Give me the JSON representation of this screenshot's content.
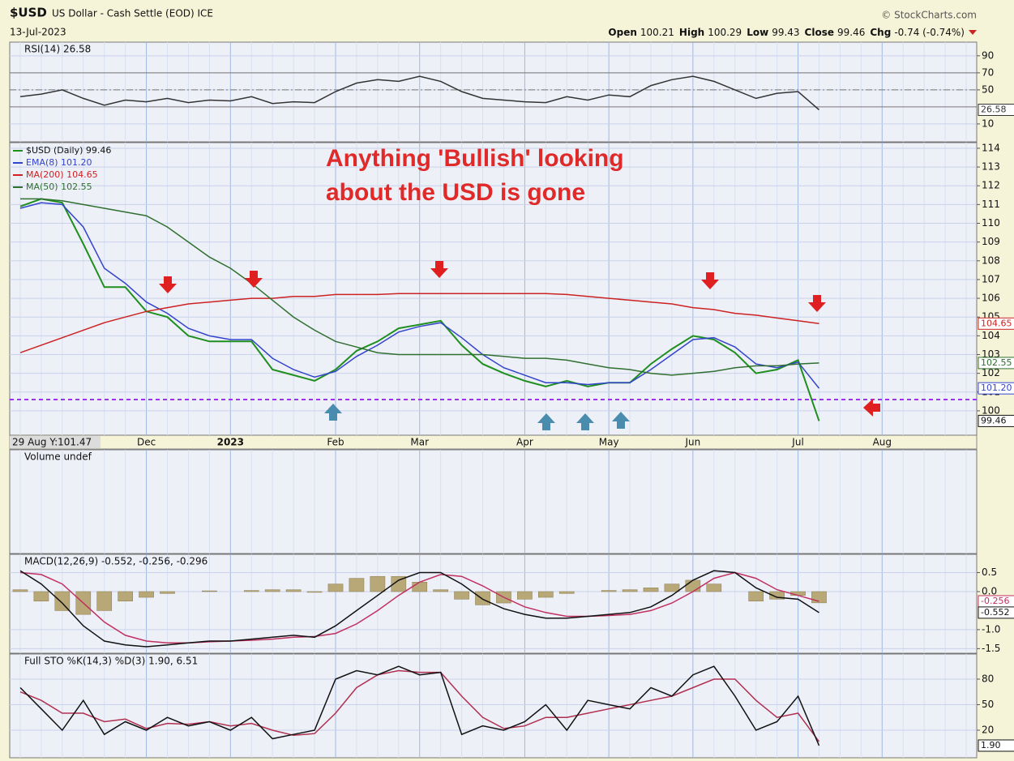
{
  "header": {
    "symbol": "$USD",
    "name": "US Dollar - Cash Settle (EOD) ICE",
    "source": "© StockCharts.com",
    "date": "13-Jul-2023",
    "quote": [
      {
        "label": "Open",
        "value": "100.21"
      },
      {
        "label": "High",
        "value": "100.29"
      },
      {
        "label": "Low",
        "value": "99.43"
      },
      {
        "label": "Close",
        "value": "99.46"
      },
      {
        "label": "Chg",
        "value": "-0.74 (-0.74%)"
      }
    ]
  },
  "chart_data": {
    "type": "stock",
    "categories": [
      null,
      null,
      null,
      null,
      null,
      null,
      "Dec",
      null,
      null,
      null,
      "2023",
      null,
      null,
      null,
      null,
      "Feb",
      null,
      null,
      null,
      "Mar",
      null,
      null,
      null,
      null,
      "Apr",
      null,
      null,
      null,
      "May",
      null,
      null,
      null,
      "Jun",
      null,
      null,
      null,
      null,
      "Jul",
      null,
      null,
      null,
      "Aug",
      null,
      null,
      null,
      null
    ],
    "cursor_label": "29 Aug Y:101.47",
    "annotation": [
      "Anything 'Bullish' looking",
      "about the USD is gone"
    ],
    "panels": [
      {
        "type": "line",
        "label": "RSI(14) 26.58",
        "ylim": [
          -11,
          106
        ],
        "yticks": [
          90,
          70,
          50,
          10
        ],
        "reference_lines": [
          70,
          50,
          30
        ],
        "tags": [
          {
            "value": 26.58,
            "color": "#333333"
          }
        ],
        "series": [
          {
            "color": "#333333",
            "values": [
              42,
              45,
              50,
              40,
              32,
              38,
              36,
              40,
              35,
              38,
              37,
              42,
              34,
              36,
              35,
              48,
              58,
              62,
              60,
              66,
              60,
              48,
              40,
              38,
              36,
              35,
              42,
              38,
              44,
              42,
              55,
              62,
              66,
              60,
              50,
              40,
              46,
              48,
              26.58,
              null,
              null,
              null,
              null,
              null,
              null,
              null
            ]
          }
        ]
      },
      {
        "type": "line",
        "ylim": [
          98.7,
          114.3
        ],
        "yticks": [
          100,
          101,
          102,
          103,
          104,
          105,
          106,
          107,
          108,
          109,
          110,
          111,
          112,
          113,
          114
        ],
        "hline": 100.6,
        "hline_color": "#9933ee",
        "tags": [
          {
            "value": 104.65,
            "color": "#cc2222"
          },
          {
            "value": 102.55,
            "color": "#2f6f2f"
          },
          {
            "value": 101.2,
            "label": "101.20",
            "color": "#3344cc"
          },
          {
            "value": 99.46,
            "color": "#111111"
          }
        ],
        "series": [
          {
            "name": "$USD (Daily) 99.46",
            "color": "#1f8f1f",
            "values": [
              110.9,
              111.3,
              111.1,
              108.9,
              106.6,
              106.6,
              105.3,
              105,
              104,
              103.7,
              103.7,
              103.7,
              102.2,
              101.9,
              101.6,
              102.2,
              103.2,
              103.7,
              104.4,
              104.6,
              104.8,
              103.5,
              102.5,
              102,
              101.6,
              101.3,
              101.6,
              101.3,
              101.5,
              101.5,
              102.5,
              103.3,
              104,
              103.8,
              103.1,
              102,
              102.2,
              102.7,
              99.46,
              null,
              null,
              null,
              null,
              null,
              null,
              null
            ]
          },
          {
            "name": "EMA(8) 101.20",
            "color": "#3344cc",
            "values": [
              110.8,
              111.1,
              111,
              109.8,
              107.6,
              106.8,
              105.8,
              105.2,
              104.4,
              104,
              103.8,
              103.8,
              102.8,
              102.2,
              101.8,
              102.1,
              102.9,
              103.5,
              104.2,
              104.5,
              104.7,
              103.9,
              103,
              102.3,
              101.9,
              101.5,
              101.5,
              101.4,
              101.5,
              101.5,
              102.2,
              103,
              103.8,
              103.9,
              103.4,
              102.5,
              102.3,
              102.6,
              101.2,
              null,
              null,
              null,
              null,
              null,
              null,
              null
            ]
          },
          {
            "name": "MA(200) 104.65",
            "color": "#cc2222",
            "values": [
              103.1,
              103.5,
              103.9,
              104.3,
              104.7,
              105,
              105.3,
              105.5,
              105.7,
              105.8,
              105.9,
              106,
              106,
              106.1,
              106.1,
              106.2,
              106.2,
              106.2,
              106.25,
              106.25,
              106.25,
              106.25,
              106.25,
              106.25,
              106.25,
              106.25,
              106.2,
              106.1,
              106,
              105.9,
              105.8,
              105.7,
              105.5,
              105.4,
              105.2,
              105.1,
              104.95,
              104.8,
              104.65,
              null,
              null,
              null,
              null,
              null,
              null,
              null
            ]
          },
          {
            "name": "MA(50) 102.55",
            "color": "#2f6f2f",
            "values": [
              111.3,
              111.3,
              111.2,
              111,
              110.8,
              110.6,
              110.4,
              109.8,
              109,
              108.2,
              107.6,
              106.8,
              105.9,
              105,
              104.3,
              103.7,
              103.4,
              103.1,
              103,
              103,
              103,
              103,
              103,
              102.9,
              102.8,
              102.8,
              102.7,
              102.5,
              102.3,
              102.2,
              102,
              101.9,
              102,
              102.1,
              102.3,
              102.4,
              102.4,
              102.5,
              102.55,
              null,
              null,
              null,
              null,
              null,
              null,
              null
            ]
          }
        ]
      },
      {
        "type": "volume",
        "label": "Volume undef",
        "series": []
      },
      {
        "type": "line",
        "label": "MACD(12,26,9) -0.552, -0.256, -0.296",
        "ylim": [
          -1.62,
          0.98
        ],
        "yticks": [
          0.5,
          {
            "value": 0,
            "label": "0.0"
          },
          {
            "value": -1,
            "label": "-1.0"
          },
          -1.5
        ],
        "tags": [
          {
            "value": -0.256,
            "color": "#c03060"
          },
          {
            "value": -0.552,
            "color": "#111111"
          }
        ],
        "series": [
          {
            "type": "bar",
            "color": "#b8a878",
            "values": [
              0.05,
              -0.25,
              -0.5,
              -0.6,
              -0.5,
              -0.25,
              -0.15,
              -0.05,
              0,
              0.02,
              0,
              0.03,
              0.05,
              0.05,
              -0.02,
              0.2,
              0.35,
              0.4,
              0.4,
              0.25,
              0.05,
              -0.2,
              -0.35,
              -0.3,
              -0.2,
              -0.15,
              -0.05,
              0,
              0.03,
              0.05,
              0.1,
              0.2,
              0.3,
              0.2,
              0,
              -0.25,
              -0.2,
              -0.1,
              -0.296,
              null,
              null,
              null,
              null,
              null,
              null,
              null
            ]
          },
          {
            "color": "#c03060",
            "values": [
              0.5,
              0.45,
              0.2,
              -0.3,
              -0.8,
              -1.15,
              -1.3,
              -1.35,
              -1.35,
              -1.32,
              -1.3,
              -1.28,
              -1.25,
              -1.2,
              -1.18,
              -1.1,
              -0.85,
              -0.5,
              -0.1,
              0.25,
              0.45,
              0.4,
              0.15,
              -0.15,
              -0.4,
              -0.55,
              -0.65,
              -0.65,
              -0.63,
              -0.6,
              -0.5,
              -0.3,
              0,
              0.35,
              0.5,
              0.35,
              0.05,
              -0.1,
              -0.256,
              null,
              null,
              null,
              null,
              null,
              null,
              null
            ]
          },
          {
            "color": "#111111",
            "values": [
              0.55,
              0.2,
              -0.3,
              -0.9,
              -1.3,
              -1.4,
              -1.45,
              -1.4,
              -1.35,
              -1.3,
              -1.3,
              -1.25,
              -1.2,
              -1.15,
              -1.2,
              -0.9,
              -0.5,
              -0.1,
              0.3,
              0.5,
              0.5,
              0.2,
              -0.2,
              -0.45,
              -0.6,
              -0.7,
              -0.7,
              -0.65,
              -0.6,
              -0.55,
              -0.4,
              -0.1,
              0.3,
              0.55,
              0.5,
              0.1,
              -0.15,
              -0.2,
              -0.552,
              null,
              null,
              null,
              null,
              null,
              null,
              null
            ]
          }
        ]
      },
      {
        "type": "line",
        "label": "Full STO %K(14,3) %D(3) 1.90, 6.51",
        "ylim": [
          -12.4,
          109.5
        ],
        "yticks": [
          80,
          50,
          20
        ],
        "tags": [
          {
            "value": 1.9,
            "label": "1.90",
            "color": "#111111"
          }
        ],
        "series": [
          {
            "color": "#b03050",
            "values": [
              65,
              55,
              40,
              40,
              30,
              33,
              22,
              28,
              27,
              30,
              25,
              28,
              20,
              14,
              16,
              40,
              70,
              85,
              90,
              88,
              88,
              60,
              35,
              22,
              25,
              35,
              35,
              40,
              45,
              50,
              55,
              60,
              70,
              80,
              80,
              55,
              35,
              40,
              6.51,
              null,
              null,
              null,
              null,
              null,
              null,
              null
            ]
          },
          {
            "color": "#111111",
            "values": [
              70,
              45,
              20,
              55,
              15,
              30,
              20,
              35,
              25,
              30,
              20,
              35,
              10,
              15,
              20,
              80,
              90,
              85,
              95,
              85,
              88,
              15,
              25,
              20,
              30,
              50,
              20,
              55,
              50,
              45,
              70,
              60,
              85,
              95,
              60,
              20,
              30,
              60,
              1.9,
              null,
              null,
              null,
              null,
              null,
              null,
              null
            ]
          }
        ]
      }
    ]
  }
}
